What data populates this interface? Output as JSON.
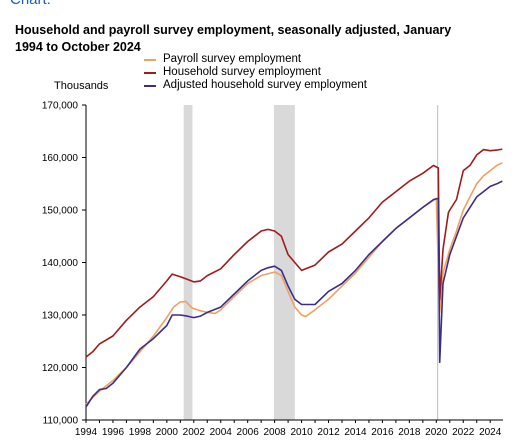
{
  "page": {
    "top_text": "Chart:"
  },
  "chart_data": {
    "type": "line",
    "title": "Household and payroll survey employment, seasonally adjusted, January 1994 to October 2024",
    "ylabel": "Thousands",
    "ylim": [
      110000,
      170000
    ],
    "xlim": [
      1994.0,
      2024.95
    ],
    "y_ticks": [
      "110,000",
      "120,000",
      "130,000",
      "140,000",
      "150,000",
      "160,000",
      "170,000"
    ],
    "y_tick_values": [
      110000,
      120000,
      130000,
      140000,
      150000,
      160000,
      170000
    ],
    "x_ticks": [
      "1994",
      "1996",
      "1998",
      "2000",
      "2002",
      "2004",
      "2006",
      "2008",
      "2010",
      "2012",
      "2014",
      "2016",
      "2018",
      "2020",
      "2022",
      "2024"
    ],
    "x_tick_values": [
      1994,
      1996,
      1998,
      2000,
      2002,
      2004,
      2006,
      2008,
      2010,
      2012,
      2014,
      2016,
      2018,
      2020,
      2022,
      2024
    ],
    "grid": false,
    "legend_position": "top",
    "recessions": [
      {
        "start": 2001.25,
        "end": 2001.9
      },
      {
        "start": 2007.95,
        "end": 2009.5
      }
    ],
    "vertical_marker": 2020.1,
    "series": [
      {
        "name": "Payroll survey employment",
        "color": "#f0a060",
        "points": [
          [
            1994.0,
            113000
          ],
          [
            1995.0,
            115500
          ],
          [
            1996.0,
            117500
          ],
          [
            1997.0,
            120000
          ],
          [
            1998.0,
            123000
          ],
          [
            1999.0,
            126000
          ],
          [
            2000.0,
            129500
          ],
          [
            2000.5,
            131500
          ],
          [
            2001.0,
            132500
          ],
          [
            2001.4,
            132600
          ],
          [
            2001.9,
            131300
          ],
          [
            2002.5,
            130800
          ],
          [
            2003.0,
            130500
          ],
          [
            2003.6,
            130300
          ],
          [
            2004.0,
            131000
          ],
          [
            2005.0,
            133500
          ],
          [
            2006.0,
            136000
          ],
          [
            2007.0,
            137500
          ],
          [
            2008.0,
            138200
          ],
          [
            2008.5,
            137500
          ],
          [
            2009.0,
            134500
          ],
          [
            2009.5,
            131500
          ],
          [
            2010.0,
            130000
          ],
          [
            2010.3,
            129700
          ],
          [
            2011.0,
            131000
          ],
          [
            2012.0,
            133000
          ],
          [
            2013.0,
            135500
          ],
          [
            2014.0,
            138000
          ],
          [
            2015.0,
            141000
          ],
          [
            2016.0,
            144000
          ],
          [
            2017.0,
            146500
          ],
          [
            2018.0,
            148500
          ],
          [
            2019.0,
            150500
          ],
          [
            2020.0,
            152200
          ],
          [
            2020.25,
            130500
          ],
          [
            2020.5,
            138000
          ],
          [
            2021.0,
            142500
          ],
          [
            2021.5,
            146000
          ],
          [
            2022.0,
            150000
          ],
          [
            2022.5,
            152500
          ],
          [
            2023.0,
            155000
          ],
          [
            2023.5,
            156500
          ],
          [
            2024.0,
            157500
          ],
          [
            2024.5,
            158500
          ],
          [
            2024.9,
            159000
          ]
        ]
      },
      {
        "name": "Household survey employment",
        "color": "#a01c1c",
        "points": [
          [
            1994.0,
            122000
          ],
          [
            1994.5,
            123000
          ],
          [
            1995.0,
            124500
          ],
          [
            1996.0,
            126000
          ],
          [
            1997.0,
            129000
          ],
          [
            1998.0,
            131500
          ],
          [
            1999.0,
            133500
          ],
          [
            2000.0,
            136500
          ],
          [
            2000.4,
            137800
          ],
          [
            2001.0,
            137300
          ],
          [
            2001.5,
            136800
          ],
          [
            2002.0,
            136300
          ],
          [
            2002.5,
            136500
          ],
          [
            2003.0,
            137500
          ],
          [
            2004.0,
            138800
          ],
          [
            2005.0,
            141500
          ],
          [
            2006.0,
            144000
          ],
          [
            2007.0,
            146000
          ],
          [
            2007.5,
            146300
          ],
          [
            2008.0,
            146000
          ],
          [
            2008.5,
            145000
          ],
          [
            2009.0,
            141500
          ],
          [
            2009.5,
            140000
          ],
          [
            2010.0,
            138500
          ],
          [
            2011.0,
            139500
          ],
          [
            2012.0,
            142000
          ],
          [
            2013.0,
            143500
          ],
          [
            2014.0,
            146000
          ],
          [
            2015.0,
            148500
          ],
          [
            2016.0,
            151500
          ],
          [
            2017.0,
            153500
          ],
          [
            2018.0,
            155500
          ],
          [
            2019.0,
            157000
          ],
          [
            2019.8,
            158500
          ],
          [
            2020.15,
            158000
          ],
          [
            2020.25,
            133000
          ],
          [
            2020.5,
            142500
          ],
          [
            2020.9,
            149500
          ],
          [
            2021.0,
            150000
          ],
          [
            2021.5,
            152000
          ],
          [
            2022.0,
            157500
          ],
          [
            2022.5,
            158500
          ],
          [
            2023.0,
            160500
          ],
          [
            2023.5,
            161500
          ],
          [
            2024.0,
            161300
          ],
          [
            2024.5,
            161400
          ],
          [
            2024.9,
            161600
          ]
        ]
      },
      {
        "name": "Adjusted household survey employment",
        "color": "#3b2d8a",
        "points": [
          [
            1994.0,
            112500
          ],
          [
            1994.5,
            114500
          ],
          [
            1995.0,
            115800
          ],
          [
            1995.5,
            116000
          ],
          [
            1996.0,
            117000
          ],
          [
            1997.0,
            120000
          ],
          [
            1998.0,
            123500
          ],
          [
            1999.0,
            125500
          ],
          [
            2000.0,
            128000
          ],
          [
            2000.4,
            130000
          ],
          [
            2001.0,
            130000
          ],
          [
            2001.5,
            129800
          ],
          [
            2002.0,
            129500
          ],
          [
            2002.5,
            129800
          ],
          [
            2003.0,
            130500
          ],
          [
            2004.0,
            131500
          ],
          [
            2005.0,
            134000
          ],
          [
            2006.0,
            136500
          ],
          [
            2007.0,
            138500
          ],
          [
            2007.5,
            139000
          ],
          [
            2008.0,
            139300
          ],
          [
            2008.5,
            138500
          ],
          [
            2009.0,
            135500
          ],
          [
            2009.5,
            133000
          ],
          [
            2010.0,
            132000
          ],
          [
            2011.0,
            132000
          ],
          [
            2012.0,
            134500
          ],
          [
            2013.0,
            136000
          ],
          [
            2014.0,
            138500
          ],
          [
            2015.0,
            141500
          ],
          [
            2016.0,
            144000
          ],
          [
            2017.0,
            146500
          ],
          [
            2018.0,
            148500
          ],
          [
            2019.0,
            150500
          ],
          [
            2019.8,
            152000
          ],
          [
            2020.15,
            152200
          ],
          [
            2020.25,
            121000
          ],
          [
            2020.5,
            136000
          ],
          [
            2021.0,
            141500
          ],
          [
            2021.5,
            145000
          ],
          [
            2022.0,
            148500
          ],
          [
            2022.5,
            150500
          ],
          [
            2023.0,
            152500
          ],
          [
            2023.5,
            153500
          ],
          [
            2024.0,
            154500
          ],
          [
            2024.5,
            155000
          ],
          [
            2024.9,
            155500
          ]
        ]
      }
    ]
  }
}
